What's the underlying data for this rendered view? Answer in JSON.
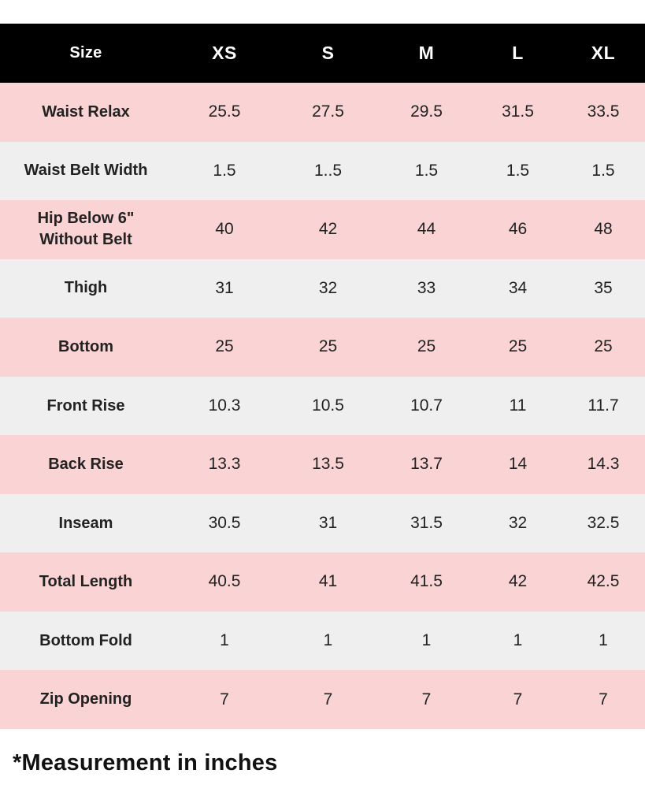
{
  "chart_data": {
    "type": "table",
    "title": "Size",
    "columns": [
      "Size",
      "XS",
      "S",
      "M",
      "L",
      "XL"
    ],
    "rows": [
      {
        "label": "Waist Relax",
        "values": [
          "25.5",
          "27.5",
          "29.5",
          "31.5",
          "33.5"
        ]
      },
      {
        "label": "Waist Belt Width",
        "values": [
          "1.5",
          "1..5",
          "1.5",
          "1.5",
          "1.5"
        ]
      },
      {
        "label": "Hip Below 6\" Without Belt",
        "values": [
          "40",
          "42",
          "44",
          "46",
          "48"
        ]
      },
      {
        "label": "Thigh",
        "values": [
          "31",
          "32",
          "33",
          "34",
          "35"
        ]
      },
      {
        "label": "Bottom",
        "values": [
          "25",
          "25",
          "25",
          "25",
          "25"
        ]
      },
      {
        "label": "Front Rise",
        "values": [
          "10.3",
          "10.5",
          "10.7",
          "11",
          "11.7"
        ]
      },
      {
        "label": "Back Rise",
        "values": [
          "13.3",
          "13.5",
          "13.7",
          "14",
          "14.3"
        ]
      },
      {
        "label": "Inseam",
        "values": [
          "30.5",
          "31",
          "31.5",
          "32",
          "32.5"
        ]
      },
      {
        "label": "Total Length",
        "values": [
          "40.5",
          "41",
          "41.5",
          "42",
          "42.5"
        ]
      },
      {
        "label": "Bottom Fold",
        "values": [
          "1",
          "1",
          "1",
          "1",
          "1"
        ]
      },
      {
        "label": "Zip Opening",
        "values": [
          "7",
          "7",
          "7",
          "7",
          "7"
        ]
      }
    ]
  },
  "footnote": "*Measurement in inches",
  "colors": {
    "header_bg": "#000000",
    "header_text": "#ffffff",
    "row_pink": "#fad3d4",
    "row_gray": "#efeff0",
    "cell_text": "#222222",
    "page_bg": "#ffffff"
  }
}
